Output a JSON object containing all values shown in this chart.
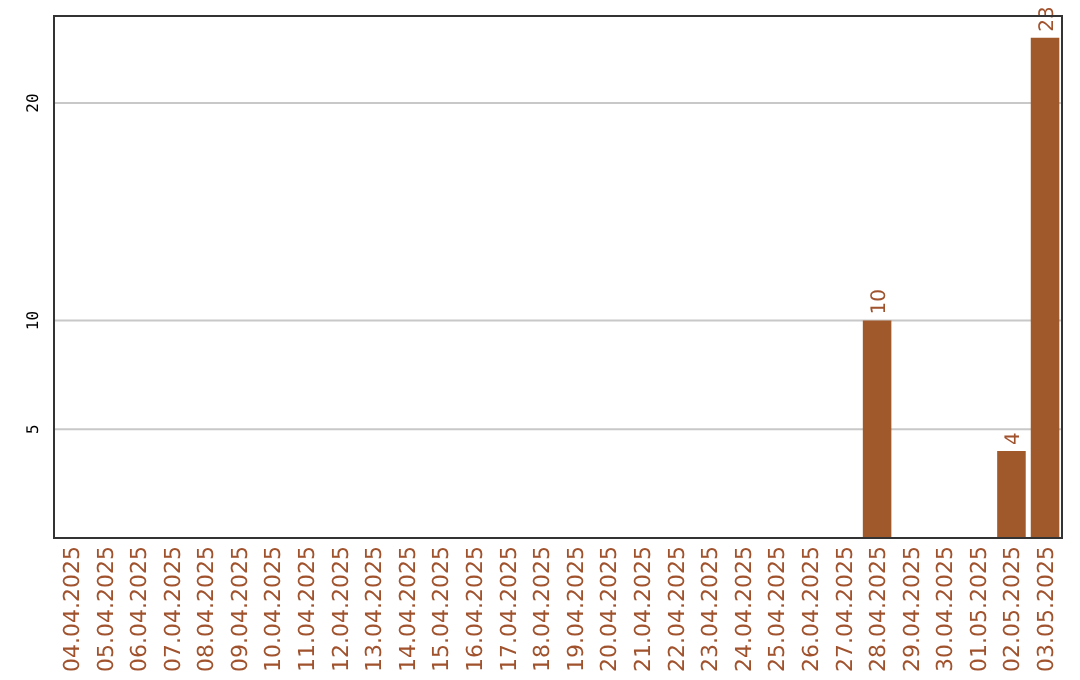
{
  "chart_data": {
    "type": "bar",
    "categories": [
      "04.04.2025",
      "05.04.2025",
      "06.04.2025",
      "07.04.2025",
      "08.04.2025",
      "09.04.2025",
      "10.04.2025",
      "11.04.2025",
      "12.04.2025",
      "13.04.2025",
      "14.04.2025",
      "15.04.2025",
      "16.04.2025",
      "17.04.2025",
      "18.04.2025",
      "19.04.2025",
      "20.04.2025",
      "21.04.2025",
      "22.04.2025",
      "23.04.2025",
      "24.04.2025",
      "25.04.2025",
      "26.04.2025",
      "27.04.2025",
      "28.04.2025",
      "29.04.2025",
      "30.04.2025",
      "01.05.2025",
      "02.05.2025",
      "03.05.2025"
    ],
    "values": [
      0,
      0,
      0,
      0,
      0,
      0,
      0,
      0,
      0,
      0,
      0,
      0,
      0,
      0,
      0,
      0,
      0,
      0,
      0,
      0,
      0,
      0,
      0,
      0,
      10,
      0,
      0,
      0,
      4,
      23
    ],
    "value_labels": [
      null,
      null,
      null,
      null,
      null,
      null,
      null,
      null,
      null,
      null,
      null,
      null,
      null,
      null,
      null,
      null,
      null,
      null,
      null,
      null,
      null,
      null,
      null,
      null,
      "10",
      null,
      null,
      null,
      "4",
      "23"
    ],
    "color": "#a0592a",
    "ylim": [
      0,
      24
    ],
    "yticks": [
      5,
      10,
      20
    ],
    "grid": "y"
  }
}
